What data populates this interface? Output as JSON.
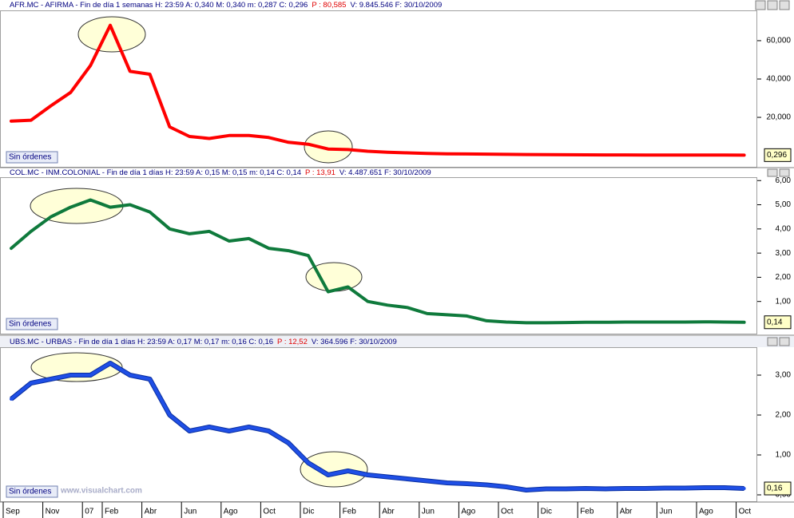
{
  "x_axis": {
    "categories": [
      "Sep",
      null,
      "Nov",
      null,
      "07",
      "Feb",
      null,
      "Abr",
      null,
      "Jun",
      null,
      "Ago",
      null,
      "Oct",
      null,
      "Dic",
      null,
      "Feb",
      null,
      "Abr",
      null,
      "Jun",
      null,
      "Ago",
      null,
      "Oct",
      null,
      "Dic",
      null,
      "Feb",
      null,
      "Abr",
      null,
      "Jun",
      null,
      "Ago",
      null,
      "Oct"
    ]
  },
  "chart_data": [
    {
      "type": "line",
      "title": "AFR.MC - AFIRMA - Fin de día 1 semanas H: 23:59 A: 0,340 M: 0,340 m: 0,287 C: 0,296",
      "price_text": "P : 80,585",
      "title_tail": "V: 9.845.546 F: 30/10/2009",
      "color": "#ff0000",
      "values": [
        18,
        18.5,
        26,
        33,
        47,
        68,
        44,
        42.5,
        15,
        10,
        9,
        10.5,
        10.5,
        9.5,
        7,
        6,
        3.5,
        3.2,
        2.3,
        1.8,
        1.5,
        1.2,
        1.0,
        0.9,
        0.8,
        0.7,
        0.6,
        0.55,
        0.5,
        0.45,
        0.4,
        0.4,
        0.35,
        0.35,
        0.3,
        0.3,
        0.3,
        0.296
      ],
      "last_value_label": "0,296",
      "ylim": [
        -5.8,
        75.8
      ],
      "yticks": [
        {
          "value": 20,
          "label": "20,000"
        },
        {
          "value": 40,
          "label": "40,000"
        },
        {
          "value": 60,
          "label": "60,000"
        }
      ],
      "orders_label": "Sin órdenes"
    },
    {
      "type": "line",
      "title": "COL.MC - INM.COLONIAL - Fin de día 1 días H: 23:59 A: 0,15 M: 0,15 m: 0,14 C: 0,14",
      "price_text": "P : 13,91",
      "title_tail": "V: 4.487.651 F: 30/10/2009",
      "color": "#0f7a3c",
      "values": [
        3.2,
        3.9,
        4.5,
        4.9,
        5.2,
        4.9,
        5.0,
        4.7,
        4.0,
        3.8,
        3.9,
        3.5,
        3.6,
        3.2,
        3.1,
        2.9,
        1.4,
        1.6,
        1.0,
        0.85,
        0.75,
        0.5,
        0.45,
        0.4,
        0.2,
        0.15,
        0.12,
        0.12,
        0.13,
        0.14,
        0.14,
        0.15,
        0.15,
        0.15,
        0.15,
        0.16,
        0.15,
        0.14
      ],
      "last_value_label": "0,14",
      "ylim": [
        -0.33,
        6.14
      ],
      "yticks": [
        {
          "value": 1,
          "label": "1,00"
        },
        {
          "value": 2,
          "label": "2,00"
        },
        {
          "value": 3,
          "label": "3,00"
        },
        {
          "value": 4,
          "label": "4,00"
        },
        {
          "value": 5,
          "label": "5,00"
        },
        {
          "value": 6,
          "label": "6,00"
        }
      ],
      "orders_label": "Sin órdenes"
    },
    {
      "type": "line",
      "title": "UBS.MC - URBAS - Fin de día 1 días H: 23:59 A: 0,17 M: 0,17 m: 0,16 C: 0,16",
      "price_text": "P : 12,52",
      "title_tail": "V: 364.596 F: 30/10/2009",
      "color": "#1f4fe6",
      "values": [
        2.4,
        2.8,
        2.9,
        3.0,
        3.0,
        3.3,
        3.0,
        2.9,
        2.0,
        1.6,
        1.7,
        1.6,
        1.7,
        1.6,
        1.3,
        0.8,
        0.5,
        0.6,
        0.5,
        0.45,
        0.4,
        0.35,
        0.3,
        0.28,
        0.25,
        0.2,
        0.12,
        0.15,
        0.15,
        0.16,
        0.15,
        0.16,
        0.16,
        0.17,
        0.17,
        0.18,
        0.18,
        0.16
      ],
      "last_value_label": "0,16",
      "ylim": [
        -0.16,
        3.68
      ],
      "yticks": [
        {
          "value": 0,
          "label": "0,00"
        },
        {
          "value": 1,
          "label": "1,00"
        },
        {
          "value": 2,
          "label": "2,00"
        },
        {
          "value": 3,
          "label": "3,00"
        }
      ],
      "orders_label": "Sin órdenes",
      "watermark": "www.visualchart.com"
    }
  ]
}
